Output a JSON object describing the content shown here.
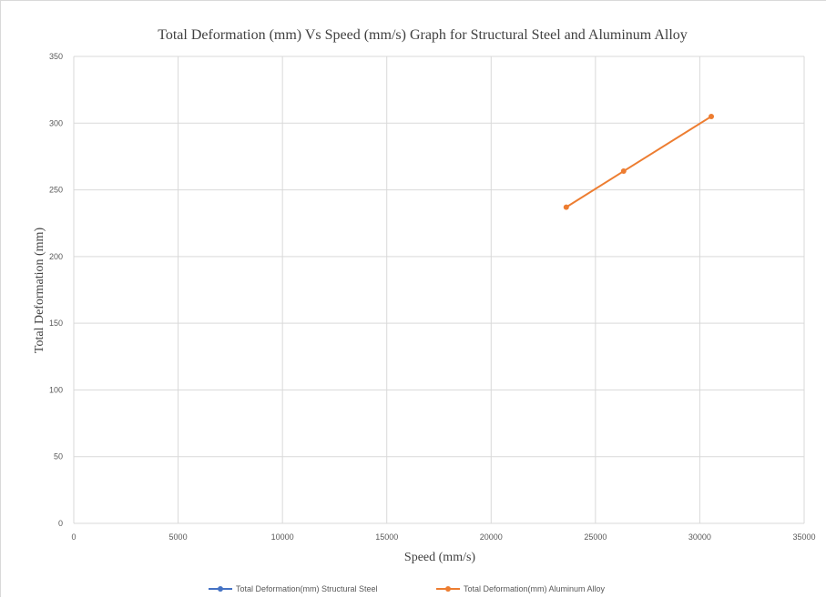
{
  "chart_data": {
    "type": "line",
    "title": "Total Deformation (mm) Vs Speed (mm/s) Graph for Structural Steel and Aluminum Alloy",
    "xlabel": "Speed (mm/s)",
    "ylabel": "Total Deformation (mm)",
    "xlim": [
      0,
      35000
    ],
    "ylim": [
      0,
      350
    ],
    "xticks": [
      0,
      5000,
      10000,
      15000,
      20000,
      25000,
      30000,
      35000
    ],
    "yticks": [
      0,
      50,
      100,
      150,
      200,
      250,
      300,
      350
    ],
    "grid": true,
    "legend_position": "bottom",
    "series": [
      {
        "name": "Total Deformation(mm) Structural Steel",
        "color": "#4472c4",
        "x": [],
        "y": []
      },
      {
        "name": "Total Deformation(mm) Aluminum Alloy",
        "color": "#ed7d31",
        "x": [
          23600,
          26350,
          30550
        ],
        "y": [
          237,
          264,
          305
        ]
      }
    ]
  }
}
